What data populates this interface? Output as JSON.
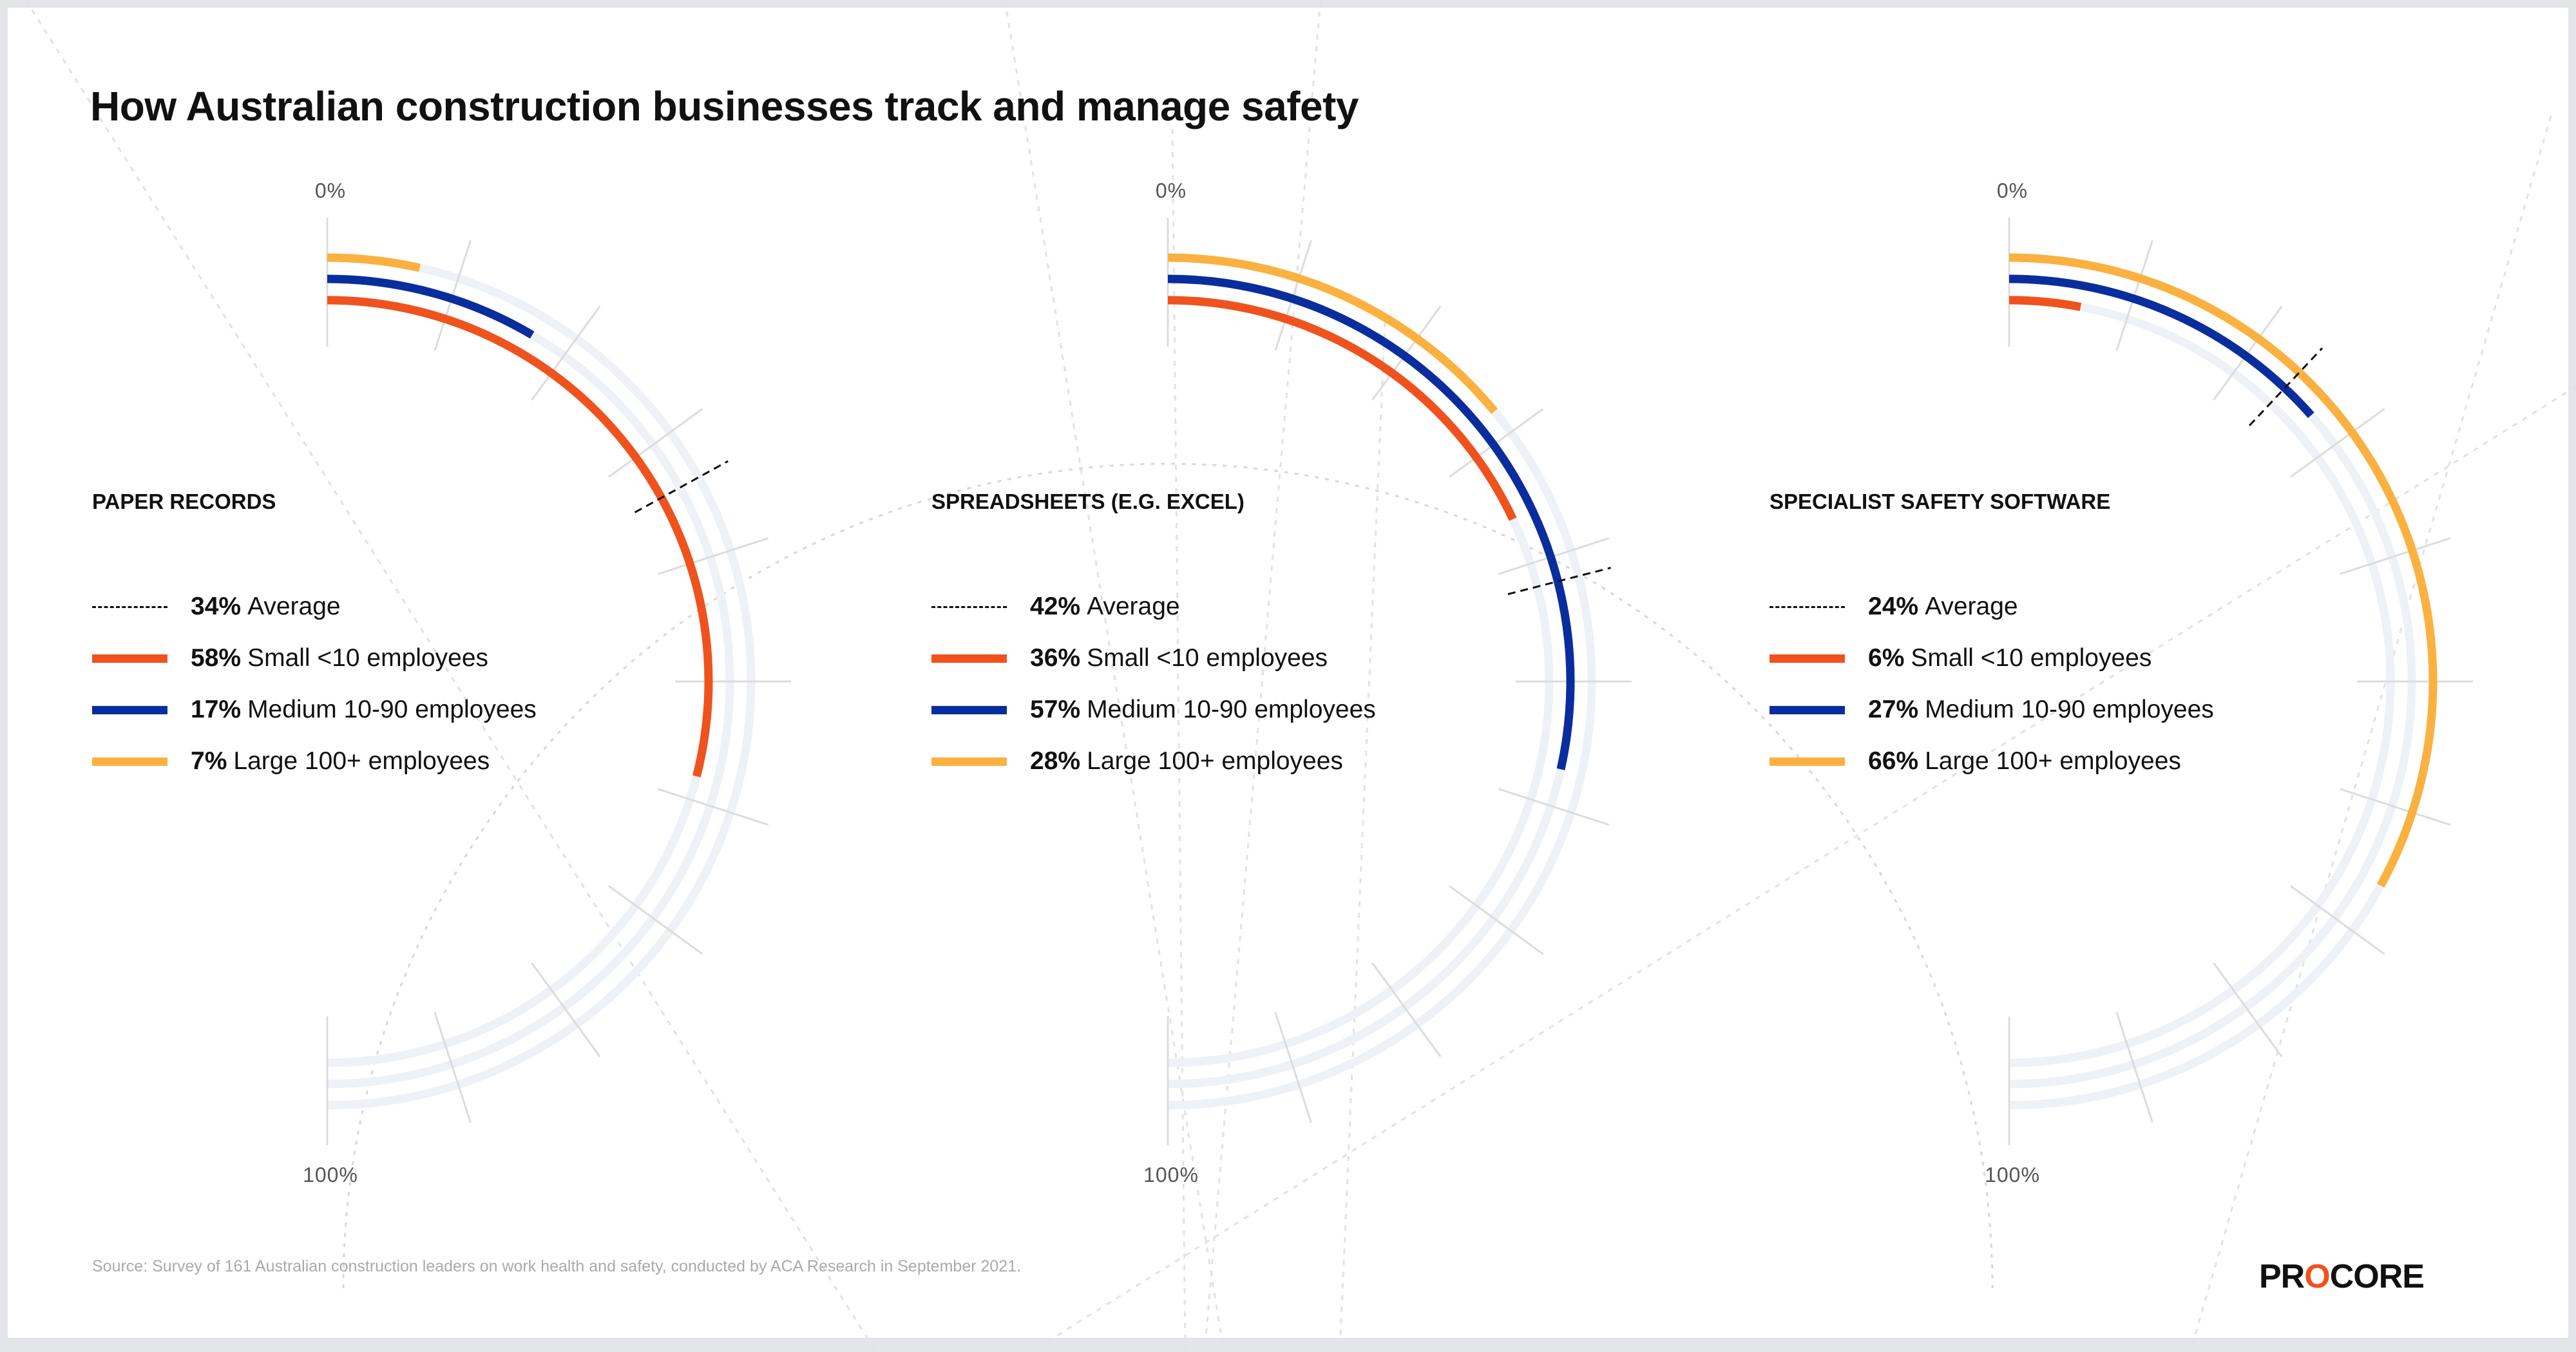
{
  "title": "How Australian construction businesses track and manage safety",
  "source": "Source: Survey of 161 Australian construction leaders on work health and safety, conducted by ACA Research in September 2021.",
  "logo": "PROCORE",
  "colors": {
    "small": "#f0521e",
    "medium": "#0a2d9e",
    "large": "#fbb140",
    "track": "#eef1f6",
    "tick": "#dcdcdc"
  },
  "chart_data": [
    {
      "type": "radial-bar",
      "title": "PAPER RECORDS",
      "axis_start": "0%",
      "axis_end": "100%",
      "range": [
        0,
        100
      ],
      "average": {
        "value": 34,
        "label": "34%",
        "name": "Average"
      },
      "series": [
        {
          "key": "small",
          "label": "58%",
          "name": "Small <10 employees",
          "value": 58
        },
        {
          "key": "medium",
          "label": "17%",
          "name": "Medium 10-90 employees",
          "value": 17
        },
        {
          "key": "large",
          "label": "7%",
          "name": "Large 100+ employees",
          "value": 7
        }
      ]
    },
    {
      "type": "radial-bar",
      "title": "SPREADSHEETS (E.G. EXCEL)",
      "axis_start": "0%",
      "axis_end": "100%",
      "range": [
        0,
        100
      ],
      "average": {
        "value": 42,
        "label": "42%",
        "name": "Average"
      },
      "series": [
        {
          "key": "small",
          "label": "36%",
          "name": "Small <10 employees",
          "value": 36
        },
        {
          "key": "medium",
          "label": "57%",
          "name": "Medium 10-90 employees",
          "value": 57
        },
        {
          "key": "large",
          "label": "28%",
          "name": "Large 100+ employees",
          "value": 28
        }
      ]
    },
    {
      "type": "radial-bar",
      "title": "SPECIALIST SAFETY SOFTWARE",
      "axis_start": "0%",
      "axis_end": "100%",
      "range": [
        0,
        100
      ],
      "average": {
        "value": 24,
        "label": "24%",
        "name": "Average"
      },
      "series": [
        {
          "key": "small",
          "label": "6%",
          "name": "Small <10 employees",
          "value": 6
        },
        {
          "key": "medium",
          "label": "27%",
          "name": "Medium 10-90 employees",
          "value": 27
        },
        {
          "key": "large",
          "label": "66%",
          "name": "Large 100+ employees",
          "value": 66
        }
      ]
    }
  ]
}
